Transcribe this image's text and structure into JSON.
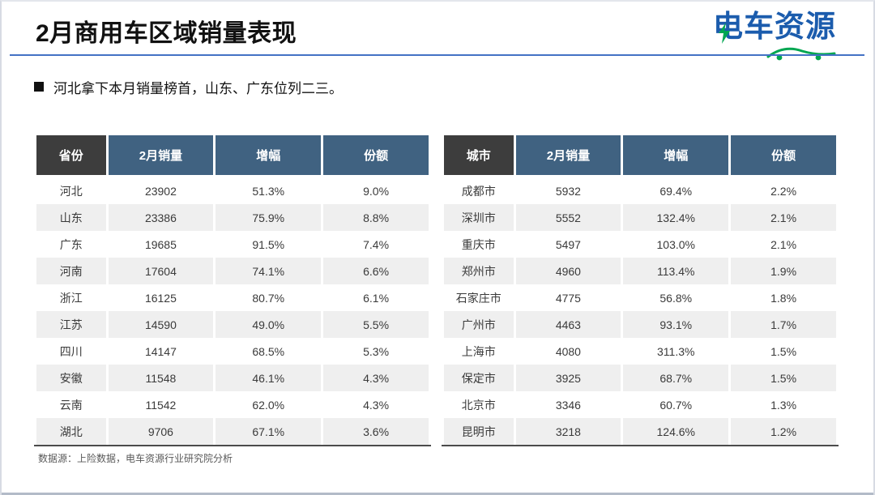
{
  "slide": {
    "title": "2月商用车区域销量表现",
    "logo_text": "电车资源",
    "bullet": "河北拿下本月销量榜首，山东、广东位列二三。",
    "footer": "数据源：上险数据，电车资源行业研究院分析"
  },
  "colors": {
    "accent_line": "#4472c4",
    "header_dark": "#3d3d3d",
    "header_blue": "#406281",
    "row_stripe": "#efefef",
    "logo_blue": "#1b5cad",
    "logo_green": "#00a651",
    "table_border": "#4b4b4b",
    "bottom_bar": "#b3bbc8"
  },
  "icons": {
    "bullet": "black-square-icon",
    "logo_bolt": "lightning-icon",
    "logo_car": "car-swoosh-icon"
  },
  "tables": [
    {
      "id": "province",
      "columns": [
        "省份",
        "2月销量",
        "增幅",
        "份额"
      ],
      "rows": [
        [
          "河北",
          "23902",
          "51.3%",
          "9.0%"
        ],
        [
          "山东",
          "23386",
          "75.9%",
          "8.8%"
        ],
        [
          "广东",
          "19685",
          "91.5%",
          "7.4%"
        ],
        [
          "河南",
          "17604",
          "74.1%",
          "6.6%"
        ],
        [
          "浙江",
          "16125",
          "80.7%",
          "6.1%"
        ],
        [
          "江苏",
          "14590",
          "49.0%",
          "5.5%"
        ],
        [
          "四川",
          "14147",
          "68.5%",
          "5.3%"
        ],
        [
          "安徽",
          "11548",
          "46.1%",
          "4.3%"
        ],
        [
          "云南",
          "11542",
          "62.0%",
          "4.3%"
        ],
        [
          "湖北",
          "9706",
          "67.1%",
          "3.6%"
        ]
      ]
    },
    {
      "id": "city",
      "columns": [
        "城市",
        "2月销量",
        "增幅",
        "份额"
      ],
      "rows": [
        [
          "成都市",
          "5932",
          "69.4%",
          "2.2%"
        ],
        [
          "深圳市",
          "5552",
          "132.4%",
          "2.1%"
        ],
        [
          "重庆市",
          "5497",
          "103.0%",
          "2.1%"
        ],
        [
          "郑州市",
          "4960",
          "113.4%",
          "1.9%"
        ],
        [
          "石家庄市",
          "4775",
          "56.8%",
          "1.8%"
        ],
        [
          "广州市",
          "4463",
          "93.1%",
          "1.7%"
        ],
        [
          "上海市",
          "4080",
          "311.3%",
          "1.5%"
        ],
        [
          "保定市",
          "3925",
          "68.7%",
          "1.5%"
        ],
        [
          "北京市",
          "3346",
          "60.7%",
          "1.3%"
        ],
        [
          "昆明市",
          "3218",
          "124.6%",
          "1.2%"
        ]
      ]
    }
  ]
}
